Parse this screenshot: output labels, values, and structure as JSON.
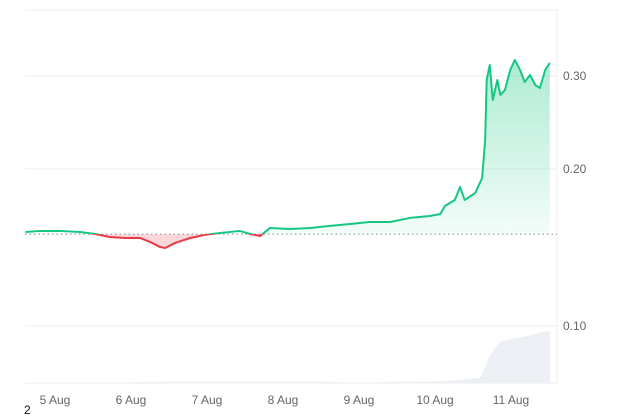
{
  "chart_data": {
    "type": "line",
    "title": "",
    "xlabel": "",
    "ylabel": "",
    "baseline": 0.13,
    "ylim": [
      0.1,
      0.34
    ],
    "yticks": [
      {
        "v": 0.3,
        "label": "0.30"
      },
      {
        "v": 0.2,
        "label": "0.20"
      }
    ],
    "volume_tick": {
      "label": "0.10"
    },
    "xticks": [
      {
        "v": 5,
        "label": "5 Aug"
      },
      {
        "v": 6,
        "label": "6 Aug"
      },
      {
        "v": 7,
        "label": "7 Aug"
      },
      {
        "v": 8,
        "label": "8 Aug"
      },
      {
        "v": 9,
        "label": "9 Aug"
      },
      {
        "v": 10,
        "label": "10 Aug"
      },
      {
        "v": 11,
        "label": "11 Aug"
      }
    ],
    "xlim": [
      4.61,
      11.51
    ],
    "colors": {
      "up": "#16c784",
      "down": "#ea3943",
      "grid": "#eeeeee",
      "volume": "#eceff3"
    },
    "series": [
      {
        "name": "price",
        "x": [
          4.61,
          4.8,
          5.07,
          5.33,
          5.53,
          5.72,
          5.92,
          6.12,
          6.25,
          6.38,
          6.45,
          6.58,
          6.78,
          6.97,
          7.17,
          7.43,
          7.57,
          7.7,
          7.83,
          8.09,
          8.36,
          8.62,
          8.88,
          9.14,
          9.41,
          9.67,
          9.93,
          10.07,
          10.13,
          10.26,
          10.33,
          10.39,
          10.53,
          10.62,
          10.66,
          10.68,
          10.72,
          10.76,
          10.82,
          10.86,
          10.92,
          10.99,
          11.05,
          11.12,
          11.18,
          11.25,
          11.32,
          11.38,
          11.45,
          11.51
        ],
        "y": [
          0.1323,
          0.1334,
          0.1334,
          0.1323,
          0.1301,
          0.1269,
          0.1258,
          0.1258,
          0.1216,
          0.1162,
          0.1151,
          0.1205,
          0.1258,
          0.1291,
          0.1312,
          0.1334,
          0.1301,
          0.128,
          0.1366,
          0.1355,
          0.1366,
          0.1388,
          0.1409,
          0.143,
          0.143,
          0.1474,
          0.1495,
          0.1516,
          0.1602,
          0.1667,
          0.1806,
          0.1667,
          0.1742,
          0.1903,
          0.2312,
          0.2957,
          0.3118,
          0.2742,
          0.2957,
          0.2796,
          0.2849,
          0.3065,
          0.3172,
          0.3065,
          0.2935,
          0.3011,
          0.2903,
          0.2871,
          0.3065,
          0.314
        ]
      }
    ],
    "volume": {
      "x": [
        4.61,
        6.5,
        8.5,
        9.0,
        10.0,
        10.3,
        10.6,
        10.72,
        10.85,
        11.0,
        11.2,
        11.4,
        11.51
      ],
      "y": [
        0,
        0.02,
        0.02,
        0.01,
        0.03,
        0.05,
        0.1,
        0.5,
        0.75,
        0.8,
        0.85,
        0.92,
        0.95
      ]
    }
  },
  "footer": {
    "text": "2"
  }
}
